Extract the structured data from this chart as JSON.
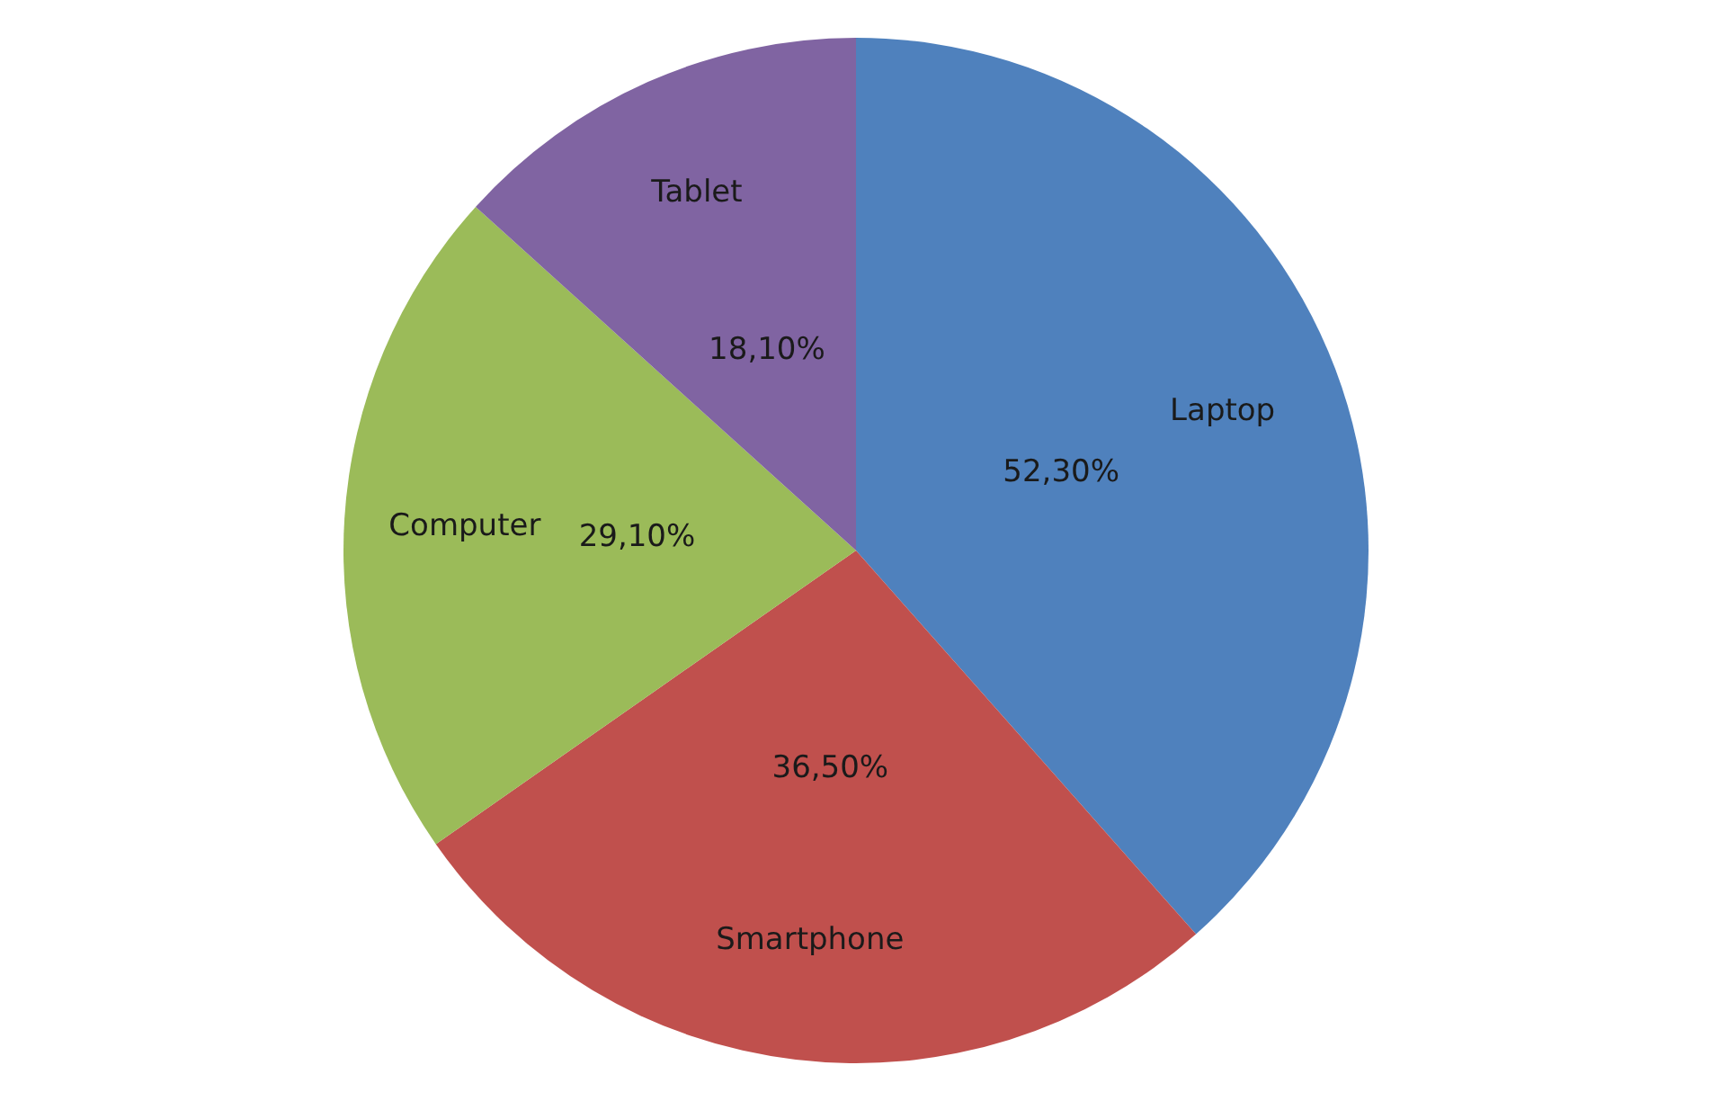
{
  "chart_data": {
    "type": "pie",
    "categories": [
      "Laptop",
      "Smartphone",
      "Computer",
      "Tablet"
    ],
    "values": [
      52.3,
      36.5,
      29.1,
      18.1
    ],
    "value_labels": [
      "52,30%",
      "36,50%",
      "29,10%",
      "18,10%"
    ],
    "colors": [
      "#4f81bd",
      "#c0504d",
      "#9bbb59",
      "#8064a2"
    ]
  }
}
